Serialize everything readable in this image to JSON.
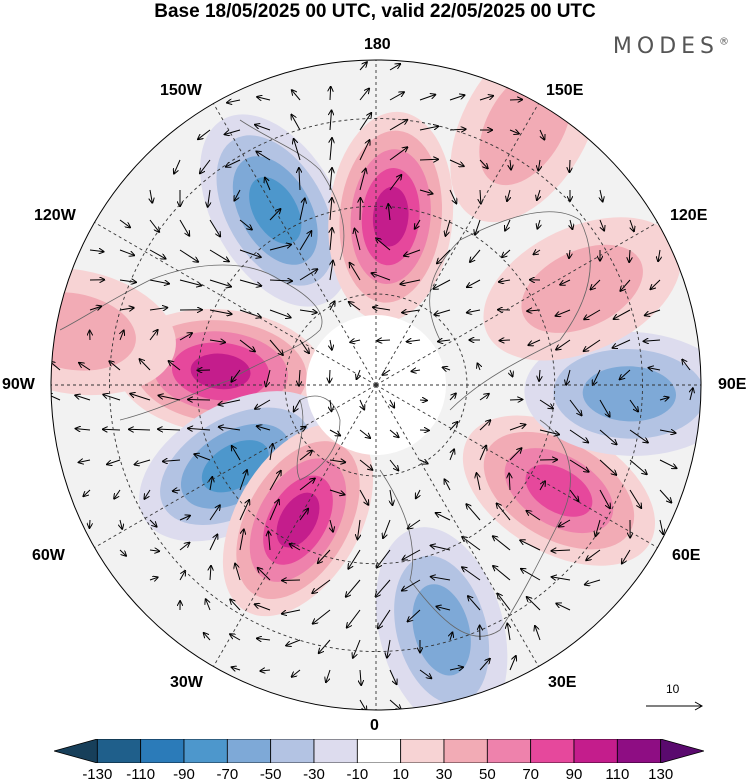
{
  "title": "Base 18/05/2025 00 UTC, valid 22/05/2025 00 UTC",
  "brand": "MODES",
  "brand_mark": "®",
  "longitude_labels": {
    "n180": "180",
    "w150": "150W",
    "e150": "150E",
    "w120": "120W",
    "e120": "120E",
    "w90": "90W",
    "e90": "90E",
    "w60": "60W",
    "e60": "60E",
    "w30": "30W",
    "e30": "30E",
    "s0": "0"
  },
  "reference_vector": {
    "label": "10"
  },
  "colorbar": {
    "ticks": [
      "-130",
      "-110",
      "-90",
      "-70",
      "-50",
      "-30",
      "-10",
      "10",
      "30",
      "50",
      "70",
      "90",
      "110",
      "130"
    ],
    "colors": [
      "#173f5a",
      "#1f5f8b",
      "#2b7bb9",
      "#4d97cc",
      "#7ea9d7",
      "#b3c3e3",
      "#dddcee",
      "#ffffff",
      "#f7d3d4",
      "#f2abb5",
      "#ee82ac",
      "#e6489c",
      "#c41d8c",
      "#8e0d83",
      "#5a0a6e"
    ]
  },
  "anomalies": [
    {
      "lon": -150,
      "lat_r": 0.62,
      "sign": "neg",
      "level": 4,
      "label": "low-150W"
    },
    {
      "lon": 175,
      "lat_r": 0.52,
      "sign": "pos",
      "level": 5,
      "label": "high-180"
    },
    {
      "lon": -95,
      "lat_r": 0.48,
      "sign": "pos",
      "level": 5,
      "label": "high-95W"
    },
    {
      "lon": -60,
      "lat_r": 0.5,
      "sign": "neg",
      "level": 4,
      "label": "low-60W"
    },
    {
      "lon": -30,
      "lat_r": 0.48,
      "sign": "pos",
      "level": 5,
      "label": "high-30W"
    },
    {
      "lon": 15,
      "lat_r": 0.78,
      "sign": "neg",
      "level": 3,
      "label": "low-15E"
    },
    {
      "lon": 60,
      "lat_r": 0.65,
      "sign": "pos",
      "level": 4,
      "label": "high-60E"
    },
    {
      "lon": 88,
      "lat_r": 0.78,
      "sign": "neg",
      "level": 3,
      "label": "low-90E"
    },
    {
      "lon": 115,
      "lat_r": 0.7,
      "sign": "pos",
      "level": 2,
      "label": "high-115E"
    },
    {
      "lon": 150,
      "lat_r": 0.92,
      "sign": "pos",
      "level": 2,
      "label": "high-150E"
    },
    {
      "lon": -100,
      "lat_r": 0.95,
      "sign": "pos",
      "level": 2,
      "label": "high-100W"
    }
  ]
}
